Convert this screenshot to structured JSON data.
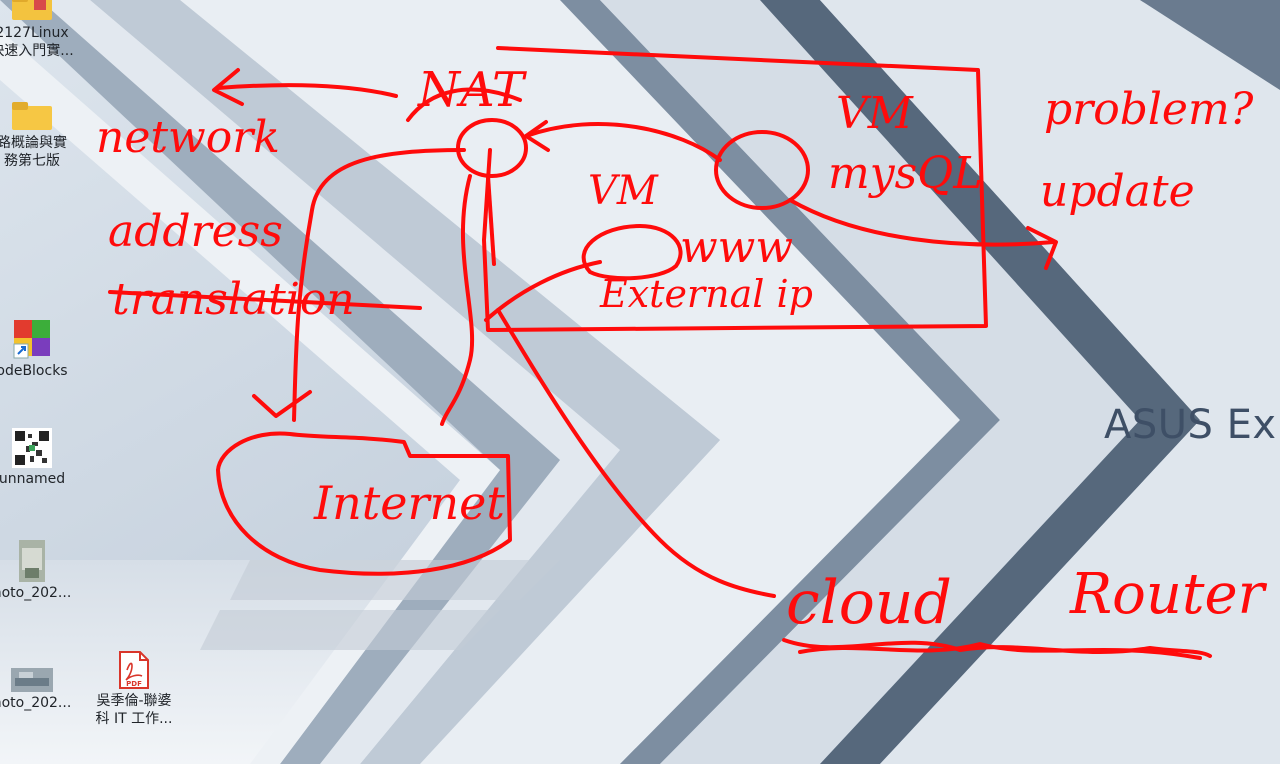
{
  "desktop": {
    "icons": [
      {
        "label_line1": "2127Linux",
        "label_line2": "快速入門實...",
        "kind": "folder"
      },
      {
        "label_line1": "路概論與實",
        "label_line2": "務第七版",
        "kind": "folder"
      },
      {
        "label_line1": "odeBlocks",
        "label_line2": "",
        "kind": "app"
      },
      {
        "label_line1": "unnamed",
        "label_line2": "",
        "kind": "qr"
      },
      {
        "label_line1": "hoto_202...",
        "label_line2": "",
        "kind": "photo"
      },
      {
        "label_line1": "hoto_202...",
        "label_line2": "",
        "kind": "photo-wide"
      },
      {
        "label_line1": "吳季倫-聯婆",
        "label_line2": "科 IT 工作...",
        "kind": "pdf",
        "badge": "PDF"
      }
    ],
    "brand_text": "ASUS Exp"
  },
  "annotations": {
    "nat": "NAT",
    "network": "network",
    "address": "address",
    "translation": "translation",
    "vm1": "VM",
    "mysql": "mysQL",
    "vm2": "VM",
    "www": "www",
    "external_ip": "External ip",
    "internet": "Internet",
    "problem": "problem?",
    "update": "update",
    "cloud": "cloud",
    "router": "Router"
  },
  "colors": {
    "ink": "#ff0b0b",
    "wall_light": "#eef2f6",
    "wall_dark": "#4f6073"
  }
}
